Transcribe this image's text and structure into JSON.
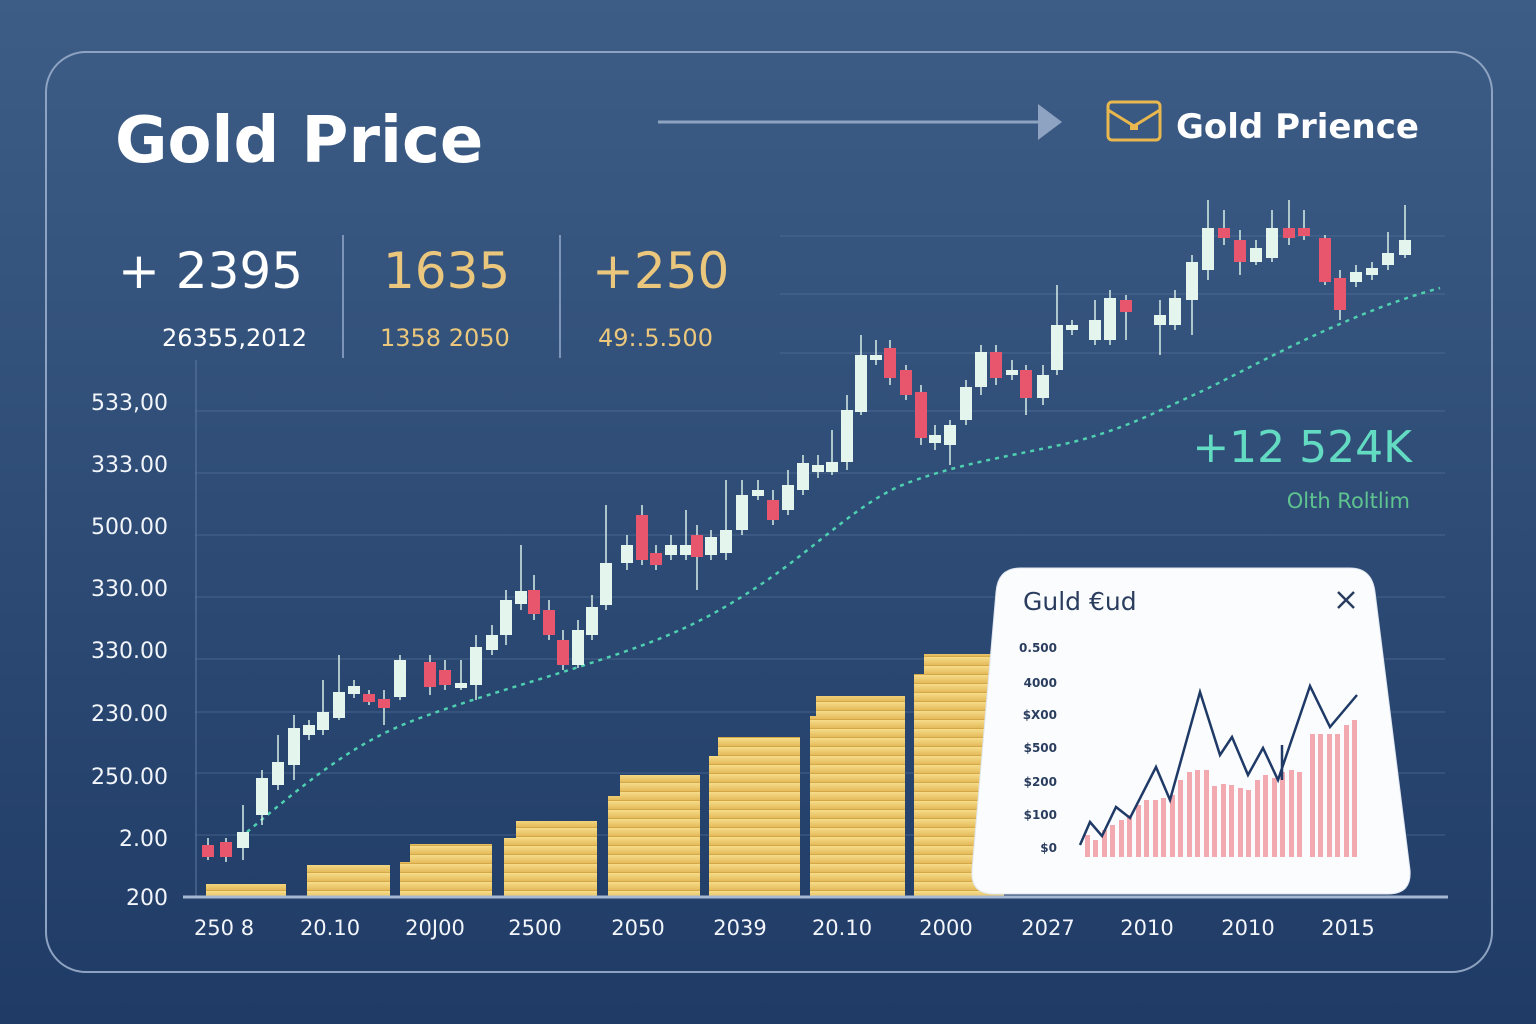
{
  "header": {
    "title": "Gold Price",
    "brand": "Gold Prience"
  },
  "stats": [
    {
      "value": "+ 2395",
      "detail": "26355,2012"
    },
    {
      "value": "1635",
      "detail": "1358 2050"
    },
    {
      "value": "+250",
      "detail": "49:.5.500"
    }
  ],
  "axis": {
    "y_labels": [
      "533,00",
      "333.00",
      "500.00",
      "330.00",
      "330.00",
      "230.00",
      "250.00",
      "2.00",
      "200"
    ],
    "x_labels": [
      "250 8",
      "20.10",
      "20J00",
      "2500",
      "2050",
      "2039",
      "20.10",
      "2000",
      "2027",
      "2010",
      "2010",
      "2015"
    ]
  },
  "callout": {
    "value": "+12 524K",
    "label": "Olth Roltlim"
  },
  "popup": {
    "title": "Guld €ud",
    "y_labels": [
      "0.500",
      "4000",
      "$X00",
      "$500",
      "$200",
      "$100",
      "$0"
    ]
  }
}
